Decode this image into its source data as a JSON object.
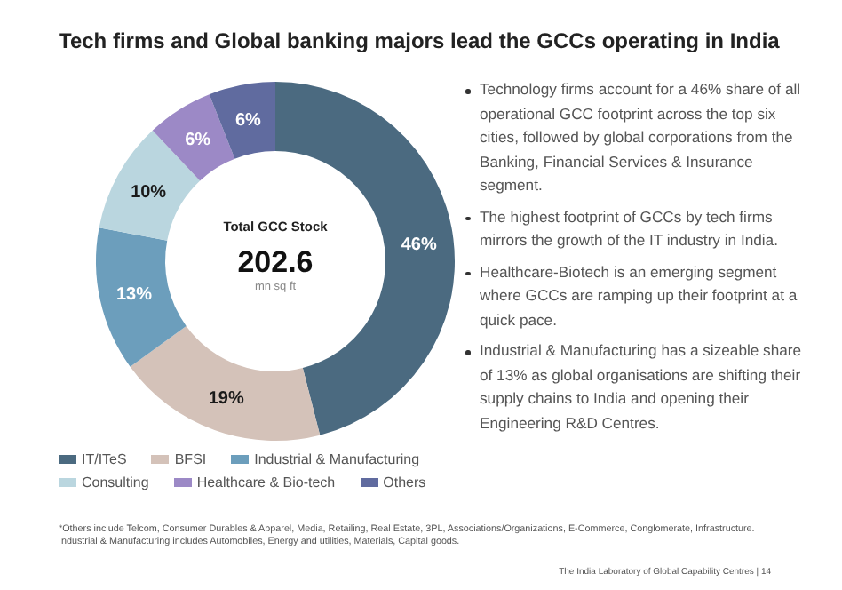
{
  "chart_data": {
    "type": "donut",
    "title": "Tech firms and Global banking majors lead the GCCs operating in India",
    "categories": [
      "IT/ITeS",
      "BFSI",
      "Industrial & Manufacturing",
      "Consulting",
      "Healthcare & Bio-tech",
      "Others"
    ],
    "values": [
      46,
      19,
      13,
      10,
      6,
      6
    ],
    "colors": [
      "#4b6a80",
      "#d4c2b9",
      "#6c9ebc",
      "#bad6df",
      "#9c89c6",
      "#606b9f"
    ],
    "value_labels": [
      "46%",
      "19%",
      "13%",
      "10%",
      "6%",
      "6%"
    ],
    "legend": "bottom",
    "annotations": [
      "Total GCC Stock",
      "202.6",
      "mn sq ft",
      "Technology firms account for a 46% share of all operational GCC footprint across the top six cities, followed by global corporations from the Banking, Financial Services & Insurance segment.",
      "The highest footprint of GCCs by tech firms mirrors the growth of the IT industry in India.",
      "Healthcare-Biotech is an emerging segment where GCCs are ramping up their footprint at a quick pace.",
      "Industrial & Manufacturing has a sizeable share of 13% as global organisations are shifting their supply chains to India and opening their Engineering R&D Centres.",
      "*Others include Telcom, Consumer Durables & Apparel, Media, Retailing, Real Estate, 3PL, Associations/Organizations, E-Commerce, Conglomerate, Infrastructure. Industrial & Manufacturing includes Automobiles, Energy and utilities, Materials, Capital goods.",
      "The India Laboratory of Global Capability Centres | 14"
    ]
  }
}
